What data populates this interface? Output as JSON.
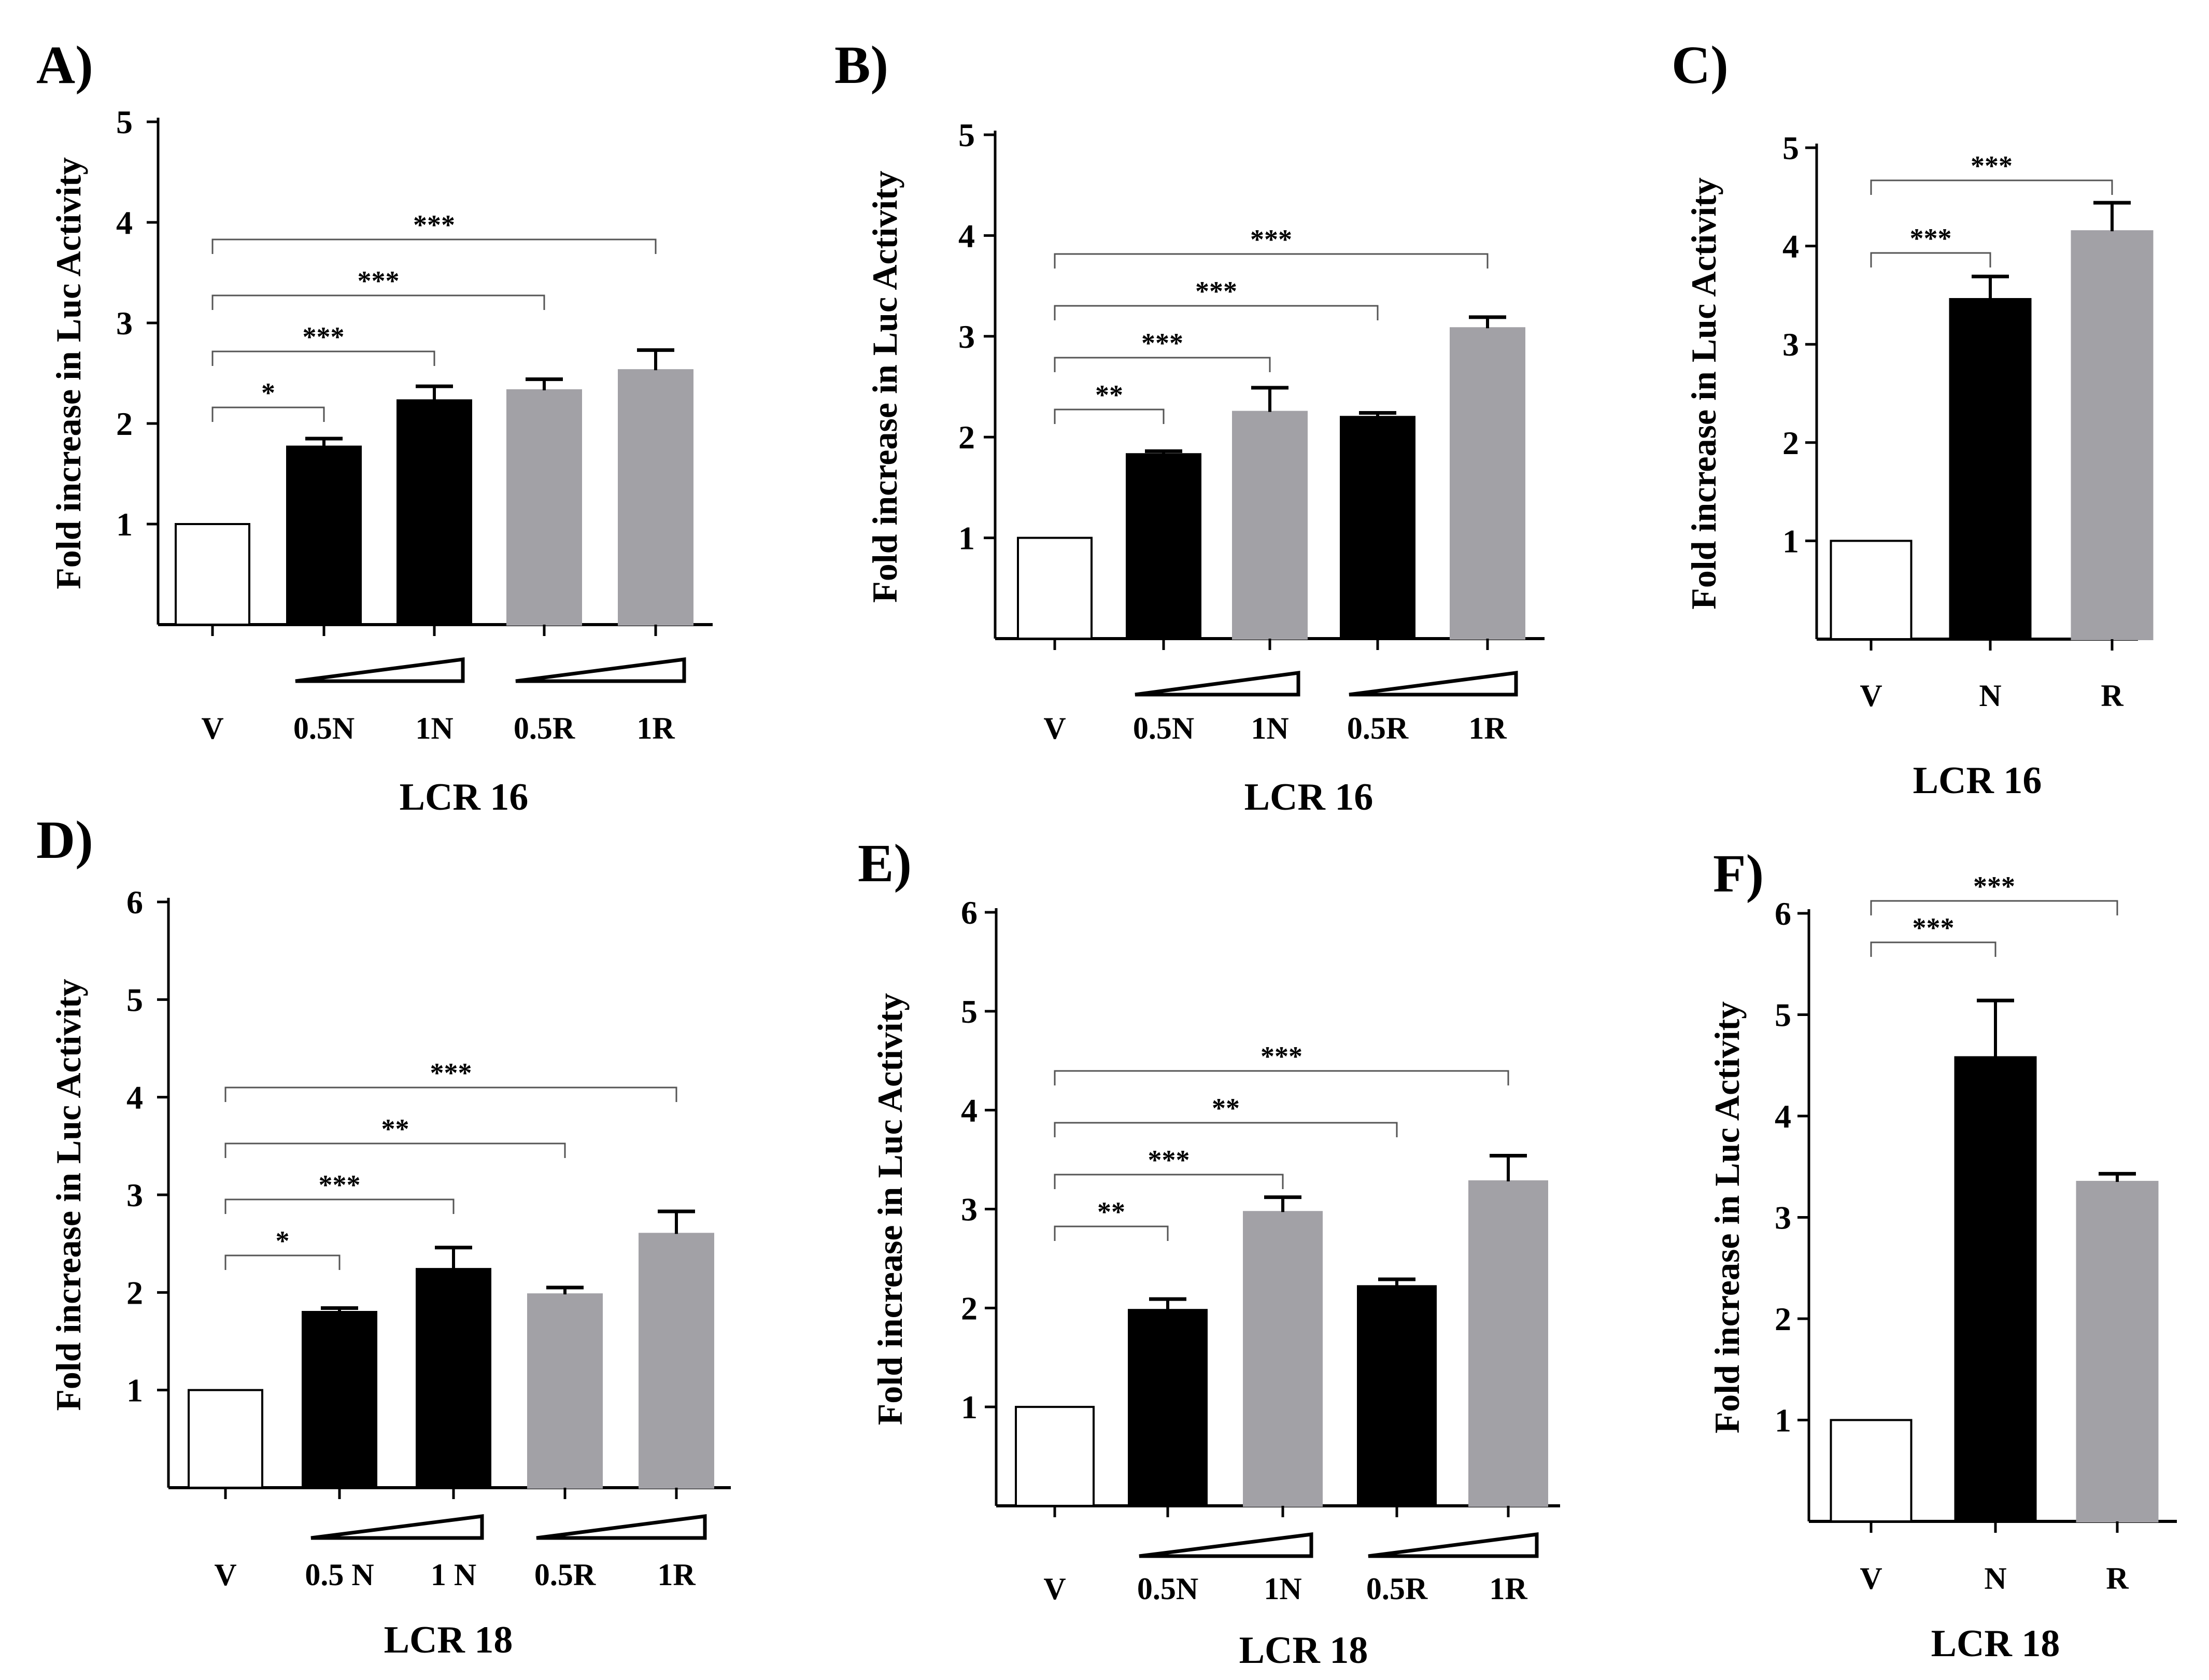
{
  "chart_data": [
    {
      "type": "bar",
      "panel_label": "A)",
      "ylabel": "Fold increase in Luc Activity",
      "xlabel": "LCR 16",
      "ylim": [
        0,
        5
      ],
      "yticks": [
        1,
        2,
        3,
        4,
        5
      ],
      "categories": [
        "V",
        "0.5N",
        "1N",
        "0.5R",
        "1R"
      ],
      "values": [
        1.0,
        1.77,
        2.23,
        2.33,
        2.53
      ],
      "errors": [
        0,
        0.08,
        0.14,
        0.11,
        0.2
      ],
      "bar_colors": [
        "#ffffff",
        "#000000",
        "#000000",
        "#a2a1a6",
        "#a2a1a6"
      ],
      "dose_ramps": [
        [
          1,
          2
        ],
        [
          3,
          4
        ]
      ],
      "significance": [
        {
          "to": 1,
          "label": "*"
        },
        {
          "to": 2,
          "label": "***"
        },
        {
          "to": 3,
          "label": "***"
        },
        {
          "to": 4,
          "label": "***"
        }
      ]
    },
    {
      "type": "bar",
      "panel_label": "B)",
      "ylabel": "Fold increase in Luc Activity",
      "xlabel": "LCR 16",
      "ylim": [
        0,
        5
      ],
      "yticks": [
        1,
        2,
        3,
        4,
        5
      ],
      "categories": [
        "V",
        "0.5N",
        "1N",
        "0.5R",
        "1R"
      ],
      "values": [
        1.0,
        1.83,
        2.25,
        2.2,
        3.08
      ],
      "errors": [
        0,
        0.03,
        0.24,
        0.04,
        0.11
      ],
      "bar_colors": [
        "#ffffff",
        "#000000",
        "#a2a1a6",
        "#000000",
        "#a2a1a6"
      ],
      "dose_ramps": [
        [
          1,
          2
        ],
        [
          3,
          4
        ]
      ],
      "significance": [
        {
          "to": 1,
          "label": "**"
        },
        {
          "to": 2,
          "label": "***"
        },
        {
          "to": 3,
          "label": "***"
        },
        {
          "to": 4,
          "label": "***"
        }
      ]
    },
    {
      "type": "bar",
      "panel_label": "C)",
      "ylabel": "Fold increase in Luc Activity",
      "xlabel": "LCR 16",
      "ylim": [
        0,
        5
      ],
      "yticks": [
        1,
        2,
        3,
        4,
        5
      ],
      "categories": [
        "V",
        "N",
        "R"
      ],
      "values": [
        1.0,
        3.46,
        4.15
      ],
      "errors": [
        0,
        0.23,
        0.29
      ],
      "bar_colors": [
        "#ffffff",
        "#000000",
        "#a2a1a6"
      ],
      "dose_ramps": [],
      "significance": [
        {
          "to": 1,
          "label": "***"
        },
        {
          "to": 2,
          "label": "***"
        }
      ]
    },
    {
      "type": "bar",
      "panel_label": "D)",
      "ylabel": "Fold increase in Luc Activity",
      "xlabel": "LCR 18",
      "ylim": [
        0,
        6
      ],
      "yticks": [
        1,
        2,
        3,
        4,
        5,
        6
      ],
      "categories": [
        "V",
        "0.5 N",
        "1 N",
        "0.5R",
        "1R"
      ],
      "values": [
        1.0,
        1.8,
        2.24,
        1.98,
        2.6
      ],
      "errors": [
        0,
        0.04,
        0.22,
        0.07,
        0.23
      ],
      "bar_colors": [
        "#ffffff",
        "#000000",
        "#000000",
        "#a2a1a6",
        "#a2a1a6"
      ],
      "dose_ramps": [
        [
          1,
          2
        ],
        [
          3,
          4
        ]
      ],
      "significance": [
        {
          "to": 1,
          "label": "*"
        },
        {
          "to": 2,
          "label": "***"
        },
        {
          "to": 3,
          "label": "**"
        },
        {
          "to": 4,
          "label": "***"
        }
      ]
    },
    {
      "type": "bar",
      "panel_label": "E)",
      "ylabel": "Fold increase in Luc Activity",
      "xlabel": "LCR 18",
      "ylim": [
        0,
        6
      ],
      "yticks": [
        1,
        2,
        3,
        4,
        5,
        6
      ],
      "categories": [
        "V",
        "0.5N",
        "1N",
        "0.5R",
        "1R"
      ],
      "values": [
        1.0,
        1.98,
        2.97,
        2.22,
        3.28
      ],
      "errors": [
        0,
        0.11,
        0.15,
        0.07,
        0.26
      ],
      "bar_colors": [
        "#ffffff",
        "#000000",
        "#a2a1a6",
        "#000000",
        "#a2a1a6"
      ],
      "dose_ramps": [
        [
          1,
          2
        ],
        [
          3,
          4
        ]
      ],
      "significance": [
        {
          "to": 1,
          "label": "**"
        },
        {
          "to": 2,
          "label": "***"
        },
        {
          "to": 3,
          "label": "**"
        },
        {
          "to": 4,
          "label": "***"
        }
      ]
    },
    {
      "type": "bar",
      "panel_label": "F)",
      "ylabel": "Fold increase in Luc Activity",
      "xlabel": "LCR 18",
      "ylim": [
        0,
        6
      ],
      "yticks": [
        1,
        2,
        3,
        4,
        5,
        6
      ],
      "categories": [
        "V",
        "N",
        "R"
      ],
      "values": [
        1.0,
        4.58,
        3.35
      ],
      "errors": [
        0,
        0.56,
        0.08
      ],
      "bar_colors": [
        "#ffffff",
        "#000000",
        "#a2a1a6"
      ],
      "dose_ramps": [],
      "significance": [
        {
          "to": 1,
          "label": "***"
        },
        {
          "to": 2,
          "label": "***"
        }
      ]
    }
  ]
}
